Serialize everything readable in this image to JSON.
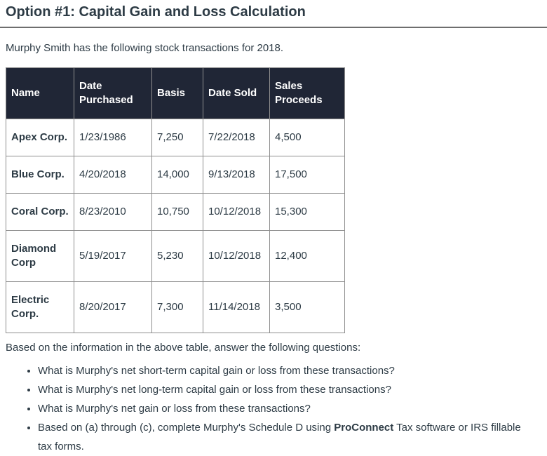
{
  "title": "Option #1: Capital Gain and Loss Calculation",
  "intro": "Murphy Smith has the following stock transactions for 2018.",
  "table": {
    "columns": [
      "Name",
      "Date Purchased",
      "Basis",
      "Date Sold",
      "Sales Proceeds"
    ],
    "rows": [
      [
        "Apex Corp.",
        "1/23/1986",
        "7,250",
        "7/22/2018",
        "4,500"
      ],
      [
        "Blue Corp.",
        "4/20/2018",
        "14,000",
        "9/13/2018",
        "17,500"
      ],
      [
        "Coral Corp.",
        "8/23/2010",
        "10,750",
        "10/12/2018",
        "15,300"
      ],
      [
        "Diamond Corp",
        "5/19/2017",
        "5,230",
        "10/12/2018",
        "12,400"
      ],
      [
        "Electric Corp.",
        "8/20/2017",
        "7,300",
        "11/14/2018",
        "3,500"
      ]
    ]
  },
  "questions_intro": "Based on the information in the above table, answer the following questions:",
  "questions": [
    {
      "segments": [
        {
          "text": "What is Murphy's net short-term capital gain or loss from these transactions?",
          "bold": false
        }
      ]
    },
    {
      "segments": [
        {
          "text": "What is Murphy's net long-term capital gain or loss from these transactions?",
          "bold": false
        }
      ]
    },
    {
      "segments": [
        {
          "text": "What is Murphy's net gain or loss from these transactions?",
          "bold": false
        }
      ]
    },
    {
      "segments": [
        {
          "text": "Based on (a) through (c), complete Murphy's Schedule D using ",
          "bold": false
        },
        {
          "text": "ProConnect",
          "bold": true
        },
        {
          "text": " Tax software or IRS fillable tax forms.",
          "bold": false
        }
      ]
    }
  ],
  "colors": {
    "header_background": "#202636",
    "header_text": "#ffffff",
    "body_text": "#2d3b45",
    "table_border": "#8e8e8e",
    "title_divider": "#6e6e6e"
  }
}
